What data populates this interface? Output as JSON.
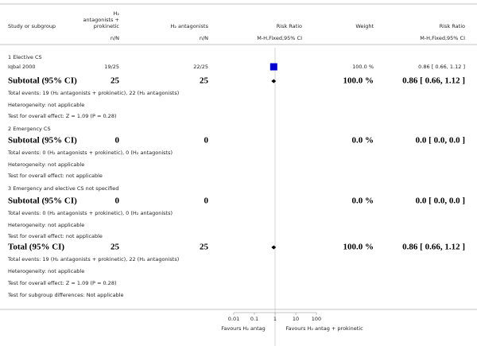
{
  "header": {
    "study": "Study or subgroup",
    "col1": [
      "H₂",
      "antagonists +",
      "prokinetic"
    ],
    "col2": "H₂ antagonists",
    "plot": "Risk Ratio",
    "weight": "Weight",
    "effect": "Risk Ratio",
    "col1_sub": "n/N",
    "col2_sub": "n/N",
    "plot_sub": "M-H,Fixed,95% CI",
    "effect_sub": "M-H,Fixed,95% CI"
  },
  "rows": [
    {
      "style": "group",
      "label": "1 Elective CS"
    },
    {
      "style": "study",
      "label": "Iqbal 2000",
      "n1": "19/25",
      "n2": "22/25",
      "weight": 100,
      "weight_label": "100.0 %",
      "rr": 0.86,
      "ci": [
        0.66,
        1.12
      ],
      "rr_label": "0.86 [ 0.66, 1.12 ]"
    },
    {
      "style": "subtotal",
      "label": "Subtotal (95% CI)",
      "n1": "25",
      "n2": "25",
      "weight_label": "100.0 %",
      "rr": 0.86,
      "ci": [
        0.66,
        1.12
      ],
      "rr_label": "0.86 [ 0.66, 1.12 ]"
    },
    {
      "style": "note",
      "label": "Total events: 19 (H₂ antagonists + prokinetic), 22 (H₂ antagonists)"
    },
    {
      "style": "note",
      "label": "Heterogeneity: not applicable"
    },
    {
      "style": "note",
      "label": "Test for overall effect: Z = 1.09 (P = 0.28)"
    },
    {
      "style": "group",
      "label": "2 Emergency CS"
    },
    {
      "style": "subtotal",
      "label": "Subtotal (95% CI)",
      "n1": "0",
      "n2": "0",
      "weight_label": "0.0 %",
      "rr_label": "0.0 [ 0.0, 0.0 ]"
    },
    {
      "style": "note",
      "label": "Total events: 0 (H₂ antagonists + prokinetic), 0 (H₂ antagonists)"
    },
    {
      "style": "note",
      "label": "Heterogeneity: not applicable"
    },
    {
      "style": "note",
      "label": "Test for overall effect: not applicable"
    },
    {
      "style": "group",
      "label": "3 Emergency and elective CS not specified"
    },
    {
      "style": "subtotal",
      "label": "Subtotal (95% CI)",
      "n1": "0",
      "n2": "0",
      "weight_label": "0.0 %",
      "rr_label": "0.0 [ 0.0, 0.0 ]"
    },
    {
      "style": "note",
      "label": "Total events: 0 (H₂ antagonists + prokinetic), 0 (H₂ antagonists)"
    },
    {
      "style": "note",
      "label": "Heterogeneity: not applicable"
    },
    {
      "style": "note",
      "label": "Test for overall effect: not applicable"
    },
    {
      "style": "subtotal",
      "label": "Total (95% CI)",
      "n1": "25",
      "n2": "25",
      "weight_label": "100.0 %",
      "rr": 0.86,
      "ci": [
        0.66,
        1.12
      ],
      "rr_label": "0.86 [ 0.66, 1.12 ]"
    },
    {
      "style": "note",
      "label": "Total events: 19 (H₂ antagonists + prokinetic), 22 (H₂ antagonists)"
    },
    {
      "style": "note",
      "label": "Heterogeneity: not applicable"
    },
    {
      "style": "note",
      "label": "Test for overall effect: Z = 1.09 (P = 0.28)"
    },
    {
      "style": "note",
      "label": "Test for subgroup differences: Not applicable"
    }
  ],
  "axis": {
    "ticks": [
      0.01,
      0.1,
      1,
      10,
      100
    ],
    "left_label": "Favours H₂ antag",
    "right_label": "Favours H₂ antag + prokinetic"
  }
}
